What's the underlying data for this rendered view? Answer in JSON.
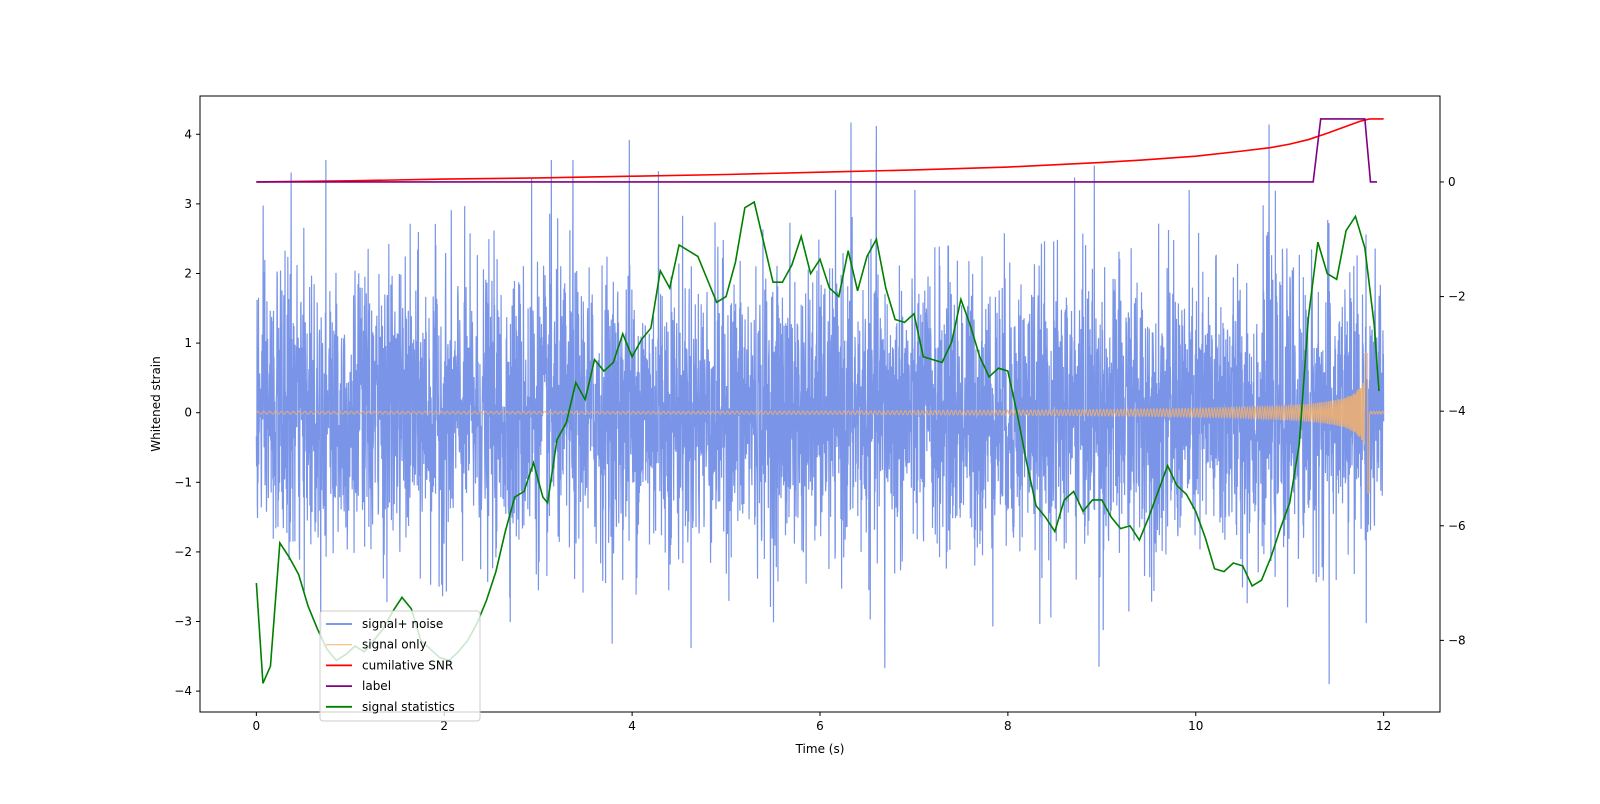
{
  "chart_data": {
    "type": "line",
    "xlabel": "Time (s)",
    "ylabel": "Whitened strain",
    "xlim": [
      -0.6,
      12.6
    ],
    "ylim": [
      -4.3,
      4.55
    ],
    "y2lim": [
      -9.25,
      1.5
    ],
    "x_ticks": [
      0,
      2,
      4,
      6,
      8,
      10,
      12
    ],
    "x_tick_labels": [
      "0",
      "2",
      "4",
      "6",
      "8",
      "10",
      "12"
    ],
    "y_ticks": [
      -4,
      -3,
      -2,
      -1,
      0,
      1,
      2,
      3,
      4
    ],
    "y_tick_labels": [
      "−4",
      "−3",
      "−2",
      "−1",
      "0",
      "1",
      "2",
      "3",
      "4"
    ],
    "y2_ticks": [
      -8,
      -6,
      -4,
      -2,
      0
    ],
    "y2_tick_labels": [
      "−8",
      "−6",
      "−4",
      "−2",
      "0"
    ],
    "legend_position": "lower-left",
    "series": [
      {
        "name": "signal+ noise",
        "axis": "left",
        "color": "#6b8ae6",
        "description_range": [
          0,
          12
        ],
        "noise_sigma": 1.0,
        "notable_peaks": [
          {
            "x": 0.37,
            "y": 3.45
          },
          {
            "x": 0.74,
            "y": 3.63
          },
          {
            "x": 2.93,
            "y": 3.38
          },
          {
            "x": 3.14,
            "y": 3.63
          },
          {
            "x": 3.37,
            "y": 3.63
          },
          {
            "x": 3.97,
            "y": 3.92
          },
          {
            "x": 4.28,
            "y": 3.47
          },
          {
            "x": 6.33,
            "y": 4.17
          },
          {
            "x": 6.6,
            "y": 4.12
          },
          {
            "x": 8.71,
            "y": 3.38
          },
          {
            "x": 8.92,
            "y": 3.55
          },
          {
            "x": 10.78,
            "y": 4.14
          },
          {
            "x": 11.42,
            "y": -3.9
          },
          {
            "x": 6.69,
            "y": -3.67
          },
          {
            "x": 8.97,
            "y": -3.65
          }
        ]
      },
      {
        "name": "signal only",
        "axis": "left",
        "color": "#f5b26b",
        "merger_time": 11.85,
        "peak_amplitude": 0.85,
        "start_amplitude": 0.03
      },
      {
        "name": "cumilative SNR",
        "axis": "right",
        "color": "#ff0000",
        "x": [
          0,
          1,
          2,
          3,
          4,
          5,
          6,
          7,
          8,
          9,
          9.5,
          10,
          10.5,
          10.8,
          11,
          11.2,
          11.4,
          11.6,
          11.75,
          11.85,
          12
        ],
        "values": [
          0,
          0.02,
          0.05,
          0.07,
          0.1,
          0.13,
          0.17,
          0.21,
          0.26,
          0.34,
          0.39,
          0.45,
          0.54,
          0.6,
          0.66,
          0.74,
          0.85,
          0.97,
          1.06,
          1.1,
          1.1
        ]
      },
      {
        "name": "label",
        "axis": "right",
        "color": "#800080",
        "x": [
          0,
          11.25,
          11.33,
          11.8,
          11.86,
          11.93
        ],
        "values": [
          0,
          0,
          1.1,
          1.1,
          0,
          0
        ]
      },
      {
        "name": "signal statistics",
        "axis": "right",
        "color": "#008000",
        "x": [
          0,
          0.07,
          0.15,
          0.25,
          0.35,
          0.45,
          0.55,
          0.65,
          0.75,
          0.85,
          0.95,
          1.05,
          1.15,
          1.25,
          1.35,
          1.45,
          1.55,
          1.65,
          1.75,
          1.85,
          1.95,
          2.05,
          2.15,
          2.25,
          2.35,
          2.45,
          2.55,
          2.65,
          2.75,
          2.85,
          2.95,
          3.05,
          3.1,
          3.2,
          3.3,
          3.4,
          3.5,
          3.6,
          3.7,
          3.8,
          3.9,
          4.0,
          4.1,
          4.2,
          4.3,
          4.4,
          4.5,
          4.6,
          4.7,
          4.8,
          4.9,
          5.0,
          5.1,
          5.2,
          5.3,
          5.4,
          5.5,
          5.6,
          5.7,
          5.8,
          5.9,
          6.0,
          6.1,
          6.2,
          6.3,
          6.4,
          6.5,
          6.6,
          6.7,
          6.8,
          6.9,
          7.0,
          7.1,
          7.2,
          7.3,
          7.4,
          7.5,
          7.6,
          7.7,
          7.8,
          7.9,
          8.0,
          8.1,
          8.2,
          8.3,
          8.4,
          8.5,
          8.6,
          8.7,
          8.8,
          8.9,
          9.0,
          9.1,
          9.2,
          9.3,
          9.4,
          9.5,
          9.6,
          9.7,
          9.8,
          9.9,
          10.0,
          10.1,
          10.2,
          10.3,
          10.4,
          10.5,
          10.6,
          10.7,
          10.8,
          10.9,
          11.0,
          11.1,
          11.2,
          11.3,
          11.4,
          11.5,
          11.6,
          11.7,
          11.8,
          11.9,
          11.95
        ],
        "values": [
          -7.0,
          -8.75,
          -8.45,
          -6.3,
          -6.55,
          -6.85,
          -7.4,
          -7.8,
          -8.15,
          -8.35,
          -8.25,
          -8.1,
          -8.2,
          -8.0,
          -7.8,
          -7.5,
          -7.25,
          -7.45,
          -8.0,
          -8.15,
          -8.3,
          -8.35,
          -8.2,
          -8.0,
          -7.7,
          -7.3,
          -6.8,
          -6.1,
          -5.5,
          -5.4,
          -4.9,
          -5.5,
          -5.6,
          -4.5,
          -4.2,
          -3.5,
          -3.8,
          -3.1,
          -3.3,
          -3.15,
          -2.65,
          -3.05,
          -2.75,
          -2.55,
          -1.55,
          -1.85,
          -1.1,
          -1.2,
          -1.3,
          -1.7,
          -2.1,
          -2.0,
          -1.4,
          -0.45,
          -0.35,
          -1.05,
          -1.75,
          -1.75,
          -1.45,
          -0.95,
          -1.6,
          -1.35,
          -1.85,
          -2.0,
          -1.2,
          -1.9,
          -1.3,
          -1.0,
          -1.85,
          -2.4,
          -2.45,
          -2.3,
          -3.05,
          -3.1,
          -3.15,
          -2.8,
          -2.05,
          -2.5,
          -3.05,
          -3.4,
          -3.25,
          -3.3,
          -4.05,
          -4.9,
          -5.65,
          -5.85,
          -6.1,
          -5.55,
          -5.4,
          -5.75,
          -5.55,
          -5.55,
          -5.85,
          -6.05,
          -6.0,
          -6.25,
          -5.85,
          -5.4,
          -4.95,
          -5.3,
          -5.45,
          -5.75,
          -6.2,
          -6.75,
          -6.8,
          -6.65,
          -6.7,
          -7.05,
          -6.95,
          -6.55,
          -6.05,
          -5.6,
          -4.6,
          -2.35,
          -1.05,
          -1.6,
          -1.7,
          -0.85,
          -0.6,
          -1.15,
          -2.5,
          -3.65
        ]
      }
    ]
  }
}
